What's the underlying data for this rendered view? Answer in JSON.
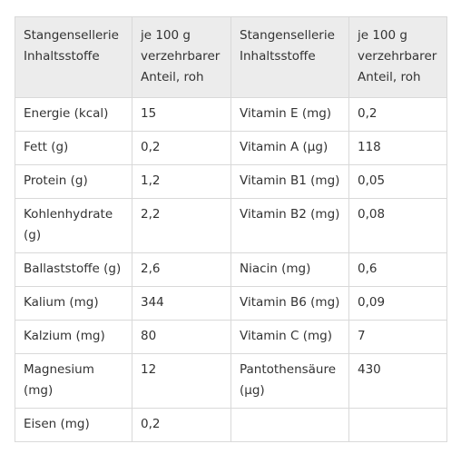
{
  "table": {
    "headers": [
      "Stangensellerie Inhaltsstoffe",
      "je 100 g verzehrbarer Anteil, roh",
      "Stangensellerie Inhaltsstoffe",
      "je 100 g verzehrbarer Anteil, roh"
    ],
    "rows": [
      [
        "Energie (kcal)",
        "15",
        "Vitamin E (mg)",
        "0,2"
      ],
      [
        "Fett (g)",
        "0,2",
        "Vitamin A (µg)",
        "118"
      ],
      [
        "Protein (g)",
        "1,2",
        "Vitamin B1 (mg)",
        "0,05"
      ],
      [
        "Kohlenhydrate (g)",
        "2,2",
        "Vitamin B2 (mg)",
        "0,08"
      ],
      [
        "Ballaststoffe (g)",
        "2,6",
        "Niacin (mg)",
        "0,6"
      ],
      [
        "Kalium (mg)",
        "344",
        "Vitamin B6 (mg)",
        "0,09"
      ],
      [
        "Kalzium (mg)",
        "80",
        "Vitamin C (mg)",
        "7"
      ],
      [
        "Magnesium (mg)",
        "12",
        "Pantothensäure (µg)",
        "430"
      ],
      [
        "Eisen (mg)",
        "0,2",
        "",
        ""
      ]
    ]
  }
}
